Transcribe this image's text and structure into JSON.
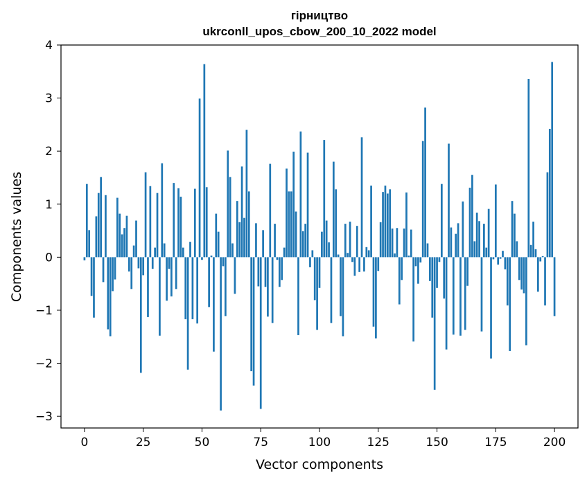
{
  "chart_data": {
    "type": "bar",
    "title": "гірництво",
    "subtitle": "ukrconll_upos_cbow_200_10_2022 model",
    "xlabel": "Vector components",
    "ylabel": "Components values",
    "xlim": [
      -10,
      210
    ],
    "ylim": [
      -3.22,
      4
    ],
    "xticks": [
      0,
      25,
      50,
      75,
      100,
      125,
      150,
      175,
      200
    ],
    "yticks": [
      -3,
      -2,
      -1,
      0,
      1,
      2,
      3,
      4
    ],
    "grid": false,
    "legend": "none",
    "bar_color": "#1f77b4",
    "x_start": 0,
    "values": [
      -0.06,
      1.38,
      0.51,
      -0.73,
      -1.14,
      0.77,
      1.21,
      1.51,
      -0.47,
      1.17,
      -1.36,
      -1.49,
      -0.64,
      -0.42,
      1.12,
      0.82,
      0.43,
      0.55,
      0.78,
      -0.27,
      -0.6,
      0.22,
      0.69,
      -0.21,
      -2.18,
      -0.34,
      1.6,
      -1.13,
      1.34,
      -0.22,
      0.18,
      1.21,
      -1.48,
      1.77,
      0.26,
      -0.82,
      -0.22,
      -0.74,
      1.4,
      -0.6,
      1.3,
      1.14,
      0.18,
      -1.17,
      -2.12,
      0.29,
      -1.17,
      1.29,
      -1.25,
      2.99,
      -0.05,
      3.64,
      1.32,
      -0.94,
      0.03,
      -1.78,
      0.82,
      0.48,
      -2.89,
      -0.17,
      -1.11,
      2.01,
      1.51,
      0.26,
      -0.69,
      1.06,
      0.66,
      1.71,
      0.74,
      2.4,
      1.24,
      -2.15,
      -2.42,
      0.64,
      -0.55,
      -2.86,
      0.51,
      -0.56,
      -1.12,
      1.76,
      -1.24,
      0.63,
      -0.05,
      -0.56,
      -0.43,
      0.18,
      1.67,
      1.24,
      1.24,
      1.99,
      0.86,
      -1.47,
      2.37,
      0.49,
      0.63,
      1.97,
      -0.19,
      0.13,
      -0.81,
      -1.37,
      -0.58,
      0.48,
      2.21,
      0.69,
      0.28,
      -1.24,
      1.8,
      1.28,
      0.05,
      -1.11,
      -1.49,
      0.63,
      0.08,
      0.67,
      -0.09,
      -0.35,
      0.59,
      -0.28,
      2.26,
      -0.27,
      0.19,
      0.13,
      1.35,
      -1.31,
      -1.53,
      -0.26,
      0.66,
      1.23,
      1.35,
      1.2,
      1.28,
      0.54,
      0.07,
      0.55,
      -0.89,
      -0.43,
      0.54,
      1.22,
      0.03,
      0.52,
      -1.59,
      -0.17,
      -0.5,
      -0.1,
      2.19,
      2.82,
      0.26,
      -0.45,
      -1.14,
      -2.5,
      -0.58,
      -0.09,
      1.38,
      -0.78,
      -1.74,
      2.14,
      0.56,
      -1.46,
      0.44,
      0.64,
      -1.48,
      1.05,
      -1.37,
      -0.54,
      1.31,
      1.55,
      0.3,
      0.84,
      0.68,
      -1.4,
      0.63,
      0.18,
      0.91,
      -1.91,
      -0.04,
      1.37,
      -0.14,
      -0.03,
      0.12,
      -0.23,
      -0.91,
      -1.77,
      1.06,
      0.82,
      0.3,
      -0.43,
      -0.61,
      -0.68,
      -1.66,
      3.36,
      0.23,
      0.67,
      0.15,
      -0.65,
      -0.08,
      0.02,
      -0.91,
      1.6,
      2.42,
      3.68,
      -1.11
    ]
  }
}
